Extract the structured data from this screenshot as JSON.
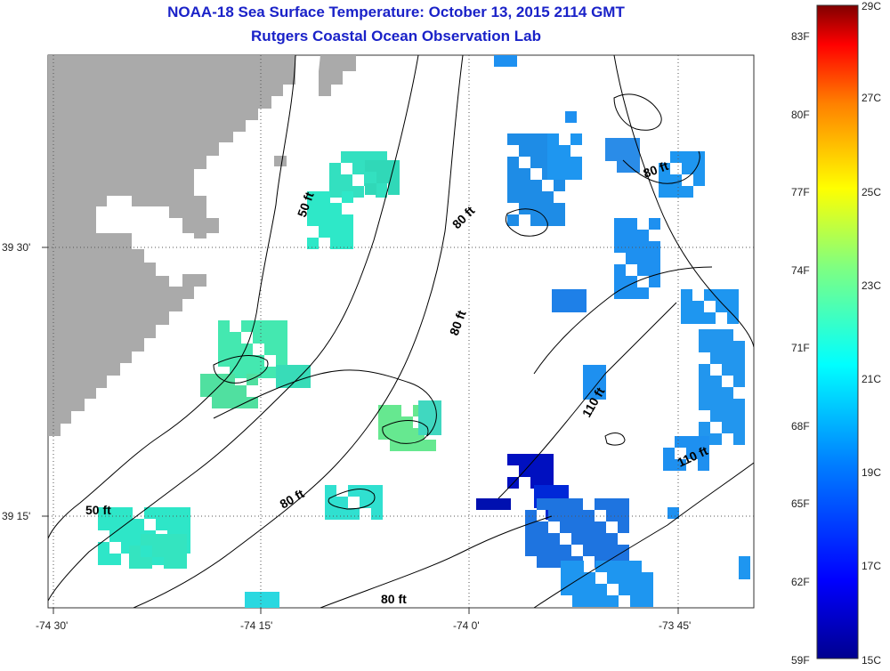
{
  "title": "NOAA-18 Sea Surface Temperature:  October 13, 2015 2114 GMT",
  "subtitle": "Rutgers Coastal Ocean Observation Lab",
  "axes": {
    "lon_labels": [
      "-74 30'",
      "-74 15'",
      "-74 0'",
      "-73 45'"
    ],
    "lat_labels": [
      "39 30'",
      "39 15'"
    ]
  },
  "contours": {
    "labels": [
      "50 ft",
      "50 ft",
      "80 ft",
      "80 ft",
      "80 ft",
      "80 ft",
      "80 ft",
      "110 ft",
      "110 ft"
    ]
  },
  "colorbar": {
    "fahrenheit": [
      "83F",
      "80F",
      "77F",
      "74F",
      "71F",
      "68F",
      "65F",
      "62F",
      "59F"
    ],
    "celsius": [
      "29C",
      "27C",
      "25C",
      "23C",
      "21C",
      "19C",
      "17C",
      "15C"
    ]
  },
  "colors": {
    "land": "#aaaaaa",
    "title": "#1a22c8",
    "grid": "#444444"
  }
}
